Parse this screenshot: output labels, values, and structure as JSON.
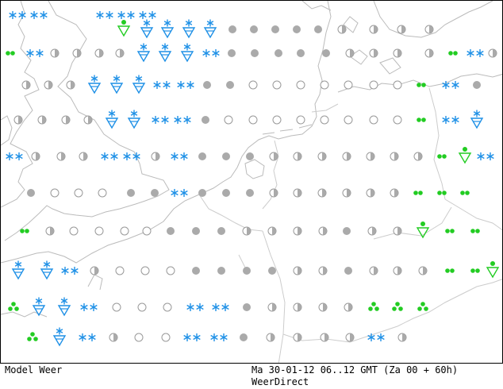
{
  "footer": {
    "model_label": "Model Weer",
    "timestamp": "Ma 30-01-12 06..12 GMT (Za 00 + 60h)",
    "source": "WeerDirect"
  },
  "colors": {
    "snow": "#1e90e6",
    "rain": "#22cc22",
    "overcast": "#aaaaaa",
    "outline": "#999999",
    "coast": "#bbbbbb"
  },
  "legend_icons": {
    "snow": "snow-icon",
    "snow_shower": "snow-shower-icon",
    "rain_shower": "rain-shower-icon",
    "drizzle": "drizzle-icon",
    "overcast": "overcast-icon",
    "partly_cloudy": "partly-cloudy-icon",
    "clear": "clear-icon"
  },
  "symbols": [
    "snow",
    "snow",
    "snow",
    "snow",
    "snow",
    "rain_shower",
    "snow_shower",
    "snow_shower",
    "snow_shower",
    "snow_shower",
    "overcast",
    "overcast",
    "overcast",
    "overcast",
    "overcast",
    "partly_cloudy",
    "partly_cloudy",
    "partly_cloudy",
    "partly_cloudy",
    "drizzle",
    "snow",
    "partly_cloudy",
    "partly_cloudy",
    "partly_cloudy",
    "partly_cloudy",
    "snow_shower",
    "snow_shower",
    "snow_shower",
    "snow",
    "overcast",
    "overcast",
    "overcast",
    "overcast",
    "overcast",
    "partly_cloudy",
    "partly_cloudy",
    "partly_cloudy",
    "partly_cloudy",
    "drizzle",
    "snow",
    "partly_cloudy",
    "partly_cloudy",
    "partly_cloudy",
    "partly_cloudy",
    "snow_shower",
    "snow_shower",
    "snow_shower",
    "snow",
    "snow",
    "overcast",
    "overcast",
    "clear",
    "clear",
    "clear",
    "clear",
    "clear",
    "clear",
    "clear",
    "drizzle",
    "snow",
    "overcast",
    "partly_cloudy",
    "partly_cloudy",
    "partly_cloudy",
    "partly_cloudy",
    "snow_shower",
    "snow_shower",
    "snow",
    "snow",
    "overcast",
    "clear",
    "clear",
    "clear",
    "clear",
    "clear",
    "clear",
    "clear",
    "clear",
    "drizzle",
    "snow",
    "snow_shower",
    "snow",
    "partly_cloudy",
    "partly_cloudy",
    "partly_cloudy",
    "snow",
    "snow",
    "partly_cloudy",
    "snow",
    "overcast",
    "overcast",
    "overcast",
    "partly_cloudy",
    "partly_cloudy",
    "partly_cloudy",
    "partly_cloudy",
    "partly_cloudy",
    "partly_cloudy",
    "partly_cloudy",
    "drizzle",
    "rain_shower",
    "snow",
    "overcast",
    "clear",
    "clear",
    "clear",
    "overcast",
    "overcast",
    "snow",
    "overcast",
    "overcast",
    "overcast",
    "partly_cloudy",
    "partly_cloudy",
    "partly_cloudy",
    "partly_cloudy",
    "partly_cloudy",
    "partly_cloudy",
    "drizzle",
    "drizzle",
    "drizzle",
    "drizzle",
    "partly_cloudy",
    "clear",
    "clear",
    "clear",
    "clear",
    "overcast",
    "overcast",
    "overcast",
    "partly_cloudy",
    "partly_cloudy",
    "partly_cloudy",
    "partly_cloudy",
    "overcast",
    "partly_cloudy",
    "partly_cloudy",
    "rain_shower",
    "drizzle",
    "drizzle",
    "snow_shower",
    "snow_shower",
    "snow",
    "partly_cloudy",
    "clear",
    "clear",
    "clear",
    "overcast",
    "overcast",
    "overcast",
    "overcast",
    "partly_cloudy",
    "partly_cloudy",
    "overcast",
    "partly_cloudy",
    "partly_cloudy",
    "partly_cloudy",
    "drizzle",
    "drizzle",
    "rain_shower",
    "rain_shower",
    "snow_shower",
    "snow_shower",
    "snow",
    "clear",
    "clear",
    "clear",
    "snow",
    "snow",
    "overcast",
    "partly_cloudy",
    "partly_cloudy",
    "partly_cloudy",
    "partly_cloudy",
    "rain_shower",
    "rain_shower",
    "rain_shower",
    "rain_shower",
    "snow_shower",
    "snow",
    "partly_cloudy",
    "clear",
    "clear",
    "snow",
    "snow",
    "overcast",
    "partly_cloudy",
    "partly_cloudy",
    "partly_cloudy",
    "partly_cloudy",
    "snow",
    "partly_cloudy"
  ]
}
